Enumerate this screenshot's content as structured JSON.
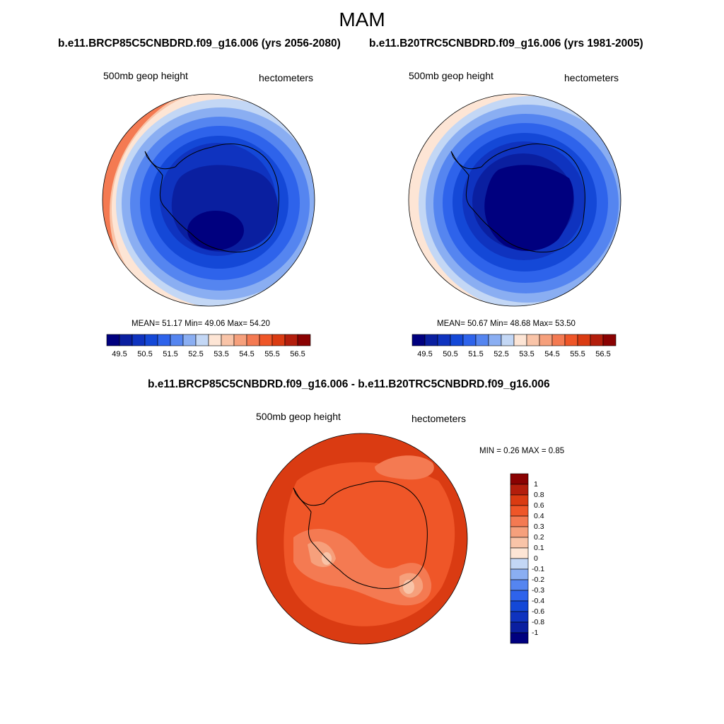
{
  "title": "MAM",
  "panels": [
    {
      "title": "b.e11.BRCP85C5CNBDRD.f09_g16.006 (yrs 2056-2080)",
      "left_label": "500mb geop height",
      "right_label": "hectometers",
      "stats": "MEAN=  51.17  Min=  49.06  Max=  54.20"
    },
    {
      "title": "b.e11.B20TRC5CNBDRD.f09_g16.006 (yrs 1981-2005)",
      "left_label": "500mb geop height",
      "right_label": "hectometers",
      "stats": "MEAN=  50.67  Min=  48.68  Max=  53.50"
    },
    {
      "title": "b.e11.BRCP85C5CNBDRD.f09_g16.006 - b.e11.B20TRC5CNBDRD.f09_g16.006",
      "left_label": "500mb geop height",
      "right_label": "hectometers",
      "stats": "MIN =   0.26 MAX =   0.85"
    }
  ],
  "chart_data": [
    {
      "type": "heatmap",
      "projection": "south-polar stereographic",
      "title": "b.e11.BRCP85C5CNBDRD.f09_g16.006 (yrs 2056-2080)",
      "variable": "500mb geop height",
      "units": "hectometers",
      "mean": 51.17,
      "min": 49.06,
      "max": 54.2,
      "colorbar_ticks": [
        "49.5",
        "50.5",
        "51.5",
        "52.5",
        "53.5",
        "54.5",
        "55.5",
        "56.5"
      ],
      "colorbar_levels": [
        49.0,
        49.5,
        50.0,
        50.5,
        51.0,
        51.5,
        52.0,
        52.5,
        53.0,
        53.5,
        54.0,
        54.5,
        55.0,
        55.5,
        56.0,
        56.5,
        57.0
      ],
      "colorbar_colors": [
        "#00007f",
        "#0a1fa0",
        "#0f33bf",
        "#1448d7",
        "#2e63eb",
        "#5585f0",
        "#8aaef2",
        "#c3d7f5",
        "#fde5d5",
        "#f9c4a8",
        "#f6a07c",
        "#f47a52",
        "#ef5628",
        "#da3b12",
        "#b31e0c",
        "#8a0202"
      ]
    },
    {
      "type": "heatmap",
      "projection": "south-polar stereographic",
      "title": "b.e11.B20TRC5CNBDRD.f09_g16.006 (yrs 1981-2005)",
      "variable": "500mb geop height",
      "units": "hectometers",
      "mean": 50.67,
      "min": 48.68,
      "max": 53.5,
      "colorbar_ticks": [
        "49.5",
        "50.5",
        "51.5",
        "52.5",
        "53.5",
        "54.5",
        "55.5",
        "56.5"
      ],
      "colorbar_levels": [
        49.0,
        49.5,
        50.0,
        50.5,
        51.0,
        51.5,
        52.0,
        52.5,
        53.0,
        53.5,
        54.0,
        54.5,
        55.0,
        55.5,
        56.0,
        56.5,
        57.0
      ],
      "colorbar_colors": [
        "#00007f",
        "#0a1fa0",
        "#0f33bf",
        "#1448d7",
        "#2e63eb",
        "#5585f0",
        "#8aaef2",
        "#c3d7f5",
        "#fde5d5",
        "#f9c4a8",
        "#f6a07c",
        "#f47a52",
        "#ef5628",
        "#da3b12",
        "#b31e0c",
        "#8a0202"
      ]
    },
    {
      "type": "heatmap",
      "projection": "south-polar stereographic",
      "title": "b.e11.BRCP85C5CNBDRD.f09_g16.006 - b.e11.B20TRC5CNBDRD.f09_g16.006",
      "variable": "500mb geop height",
      "units": "hectometers",
      "min": 0.26,
      "max": 0.85,
      "colorbar_ticks": [
        "1",
        "0.8",
        "0.6",
        "0.4",
        "0.3",
        "0.2",
        "0.1",
        "0",
        "-0.1",
        "-0.2",
        "-0.3",
        "-0.4",
        "-0.6",
        "-0.8",
        "-1"
      ],
      "colorbar_colors": [
        "#8a0202",
        "#b31e0c",
        "#da3b12",
        "#ef5628",
        "#f47a52",
        "#f6a07c",
        "#f9c4a8",
        "#fde5d5",
        "#c3d7f5",
        "#8aaef2",
        "#5585f0",
        "#2e63eb",
        "#1448d7",
        "#0f33bf",
        "#0a1fa0",
        "#00007f"
      ]
    }
  ]
}
